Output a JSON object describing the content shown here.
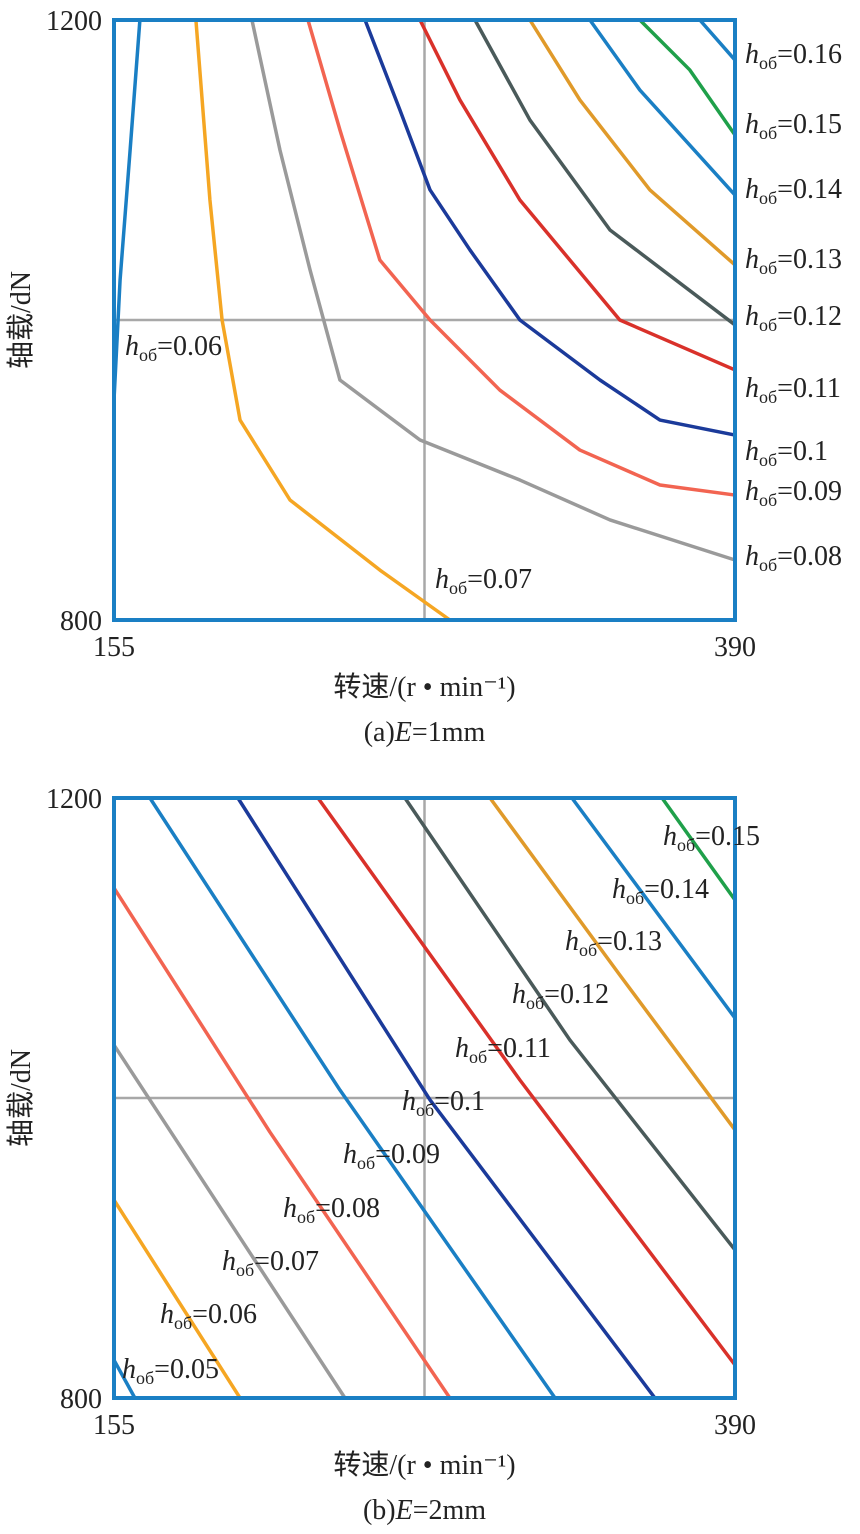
{
  "chart_data": [
    {
      "type": "line",
      "xlabel": "转速/(r • min⁻¹)",
      "ylabel": "轴载/dN",
      "caption": {
        "prefix": "(a)",
        "symbol": "E",
        "suffix": "=1mm"
      },
      "label_symbol": "h",
      "label_subscript": "об",
      "xlim": [
        155,
        390
      ],
      "ylim": [
        800,
        1200
      ],
      "xticks": [
        155,
        390
      ],
      "yticks": [
        800,
        1200
      ],
      "ref_x": 272.5,
      "ref_y": 1000,
      "frame_color": "#1a7fc4",
      "series": [
        {
          "name": "=0.06",
          "color": "#1a7fc4",
          "x": [
            164.8,
            161.1,
            157.3,
            155
          ],
          "values": [
            1200,
            1113.3,
            1026.7,
            946.7
          ]
        },
        {
          "name": "=0.07",
          "color": "#f5a623",
          "x": [
            186.0,
            191.3,
            195.9,
            202.7,
            221.6,
            255.6,
            282.1
          ],
          "values": [
            1200,
            1080,
            1000,
            933.3,
            880,
            833.3,
            800
          ]
        },
        {
          "name": "=0.08",
          "color": "#9a9a9a",
          "x": [
            207.2,
            217.8,
            229.2,
            240.5,
            270.8,
            308.6,
            342.7,
            390
          ],
          "values": [
            1200,
            1113.3,
            1033.3,
            960,
            920,
            893.3,
            866.7,
            840
          ]
        },
        {
          "name": "=0.09",
          "color": "#f26451",
          "x": [
            228.4,
            240.5,
            255.6,
            274.6,
            301.0,
            331.3,
            361.6,
            390
          ],
          "values": [
            1200,
            1126.7,
            1040,
            1000,
            953.3,
            913.3,
            890,
            883.3
          ]
        },
        {
          "name": "=0.1",
          "color": "#1b3a9a",
          "x": [
            250.0,
            263.2,
            274.6,
            289.7,
            308.6,
            338.9,
            361.6,
            390
          ],
          "values": [
            1200,
            1140,
            1086.7,
            1046.7,
            1000,
            960,
            933.3,
            923.3
          ]
        },
        {
          "name": "=0.11",
          "color": "#d9312a",
          "x": [
            270.8,
            285.9,
            308.6,
            346.4,
            390
          ],
          "values": [
            1200,
            1146.7,
            1080,
            1000,
            966.7
          ]
        },
        {
          "name": "=0.12",
          "color": "#4a5a5a",
          "x": [
            291.6,
            312.4,
            342.7,
            390
          ],
          "values": [
            1200,
            1133.3,
            1060,
            996.7
          ]
        },
        {
          "name": "=0.13",
          "color": "#e09a2a",
          "x": [
            312.4,
            331.3,
            357.8,
            390
          ],
          "values": [
            1200,
            1146.7,
            1086.7,
            1036.7
          ]
        },
        {
          "name": "=0.14",
          "color": "#1a7fc4",
          "x": [
            335.1,
            354.0,
            390
          ],
          "values": [
            1200,
            1153.3,
            1083.3
          ]
        },
        {
          "name": "=0.15",
          "color": "#1fa04a",
          "x": [
            354.0,
            372.9,
            390
          ],
          "values": [
            1200,
            1166.7,
            1123.3
          ]
        },
        {
          "name": "=0.16",
          "color": "#1a7fc4",
          "x": [
            376.7,
            390
          ],
          "values": [
            1200,
            1173.3
          ]
        }
      ]
    },
    {
      "type": "line",
      "xlabel": "转速/(r • min⁻¹)",
      "ylabel": "轴载/dN",
      "caption": {
        "prefix": "(b)",
        "symbol": "E",
        "suffix": "=2mm"
      },
      "label_symbol": "h",
      "label_subscript": "об",
      "xlim": [
        155,
        390
      ],
      "ylim": [
        800,
        1200
      ],
      "xticks": [
        155,
        390
      ],
      "yticks": [
        800,
        1200
      ],
      "ref_x": 272.5,
      "ref_y": 1000,
      "frame_color": "#1a7fc4",
      "series": [
        {
          "name": "=0.05",
          "color": "#1a7fc4",
          "x": [
            155,
            162.9
          ],
          "values": [
            825.3,
            800
          ]
        },
        {
          "name": "=0.06",
          "color": "#f5a623",
          "x": [
            155,
            202.7
          ],
          "values": [
            932,
            800
          ]
        },
        {
          "name": "=0.07",
          "color": "#9a9a9a",
          "x": [
            155,
            242.4
          ],
          "values": [
            1035.3,
            800
          ]
        },
        {
          "name": "=0.08",
          "color": "#f26451",
          "x": [
            155,
            214.0,
            282.1
          ],
          "values": [
            1140,
            977.3,
            800
          ]
        },
        {
          "name": "=0.09",
          "color": "#1a7fc4",
          "x": [
            168.6,
            240.5,
            321.9
          ],
          "values": [
            1200,
            1005.3,
            800
          ]
        },
        {
          "name": "=0.1",
          "color": "#1b3a9a",
          "x": [
            201.9,
            274.6,
            359.7
          ],
          "values": [
            1200,
            998.7,
            800
          ]
        },
        {
          "name": "=0.11",
          "color": "#d9312a",
          "x": [
            232.2,
            308.6,
            390
          ],
          "values": [
            1200,
            1012,
            822
          ]
        },
        {
          "name": "=0.12",
          "color": "#4a5a5a",
          "x": [
            265.1,
            327.5,
            390
          ],
          "values": [
            1200,
            1038.7,
            898.7
          ]
        },
        {
          "name": "=0.13",
          "color": "#e09a2a",
          "x": [
            297.3,
            346.4,
            390
          ],
          "values": [
            1200,
            1082,
            978.7
          ]
        },
        {
          "name": "=0.14",
          "color": "#1a7fc4",
          "x": [
            328.3,
            390
          ],
          "values": [
            1200,
            1053.3
          ]
        },
        {
          "name": "=0.15",
          "color": "#1fa04a",
          "x": [
            362.4,
            390
          ],
          "values": [
            1200,
            1132
          ]
        }
      ]
    }
  ]
}
